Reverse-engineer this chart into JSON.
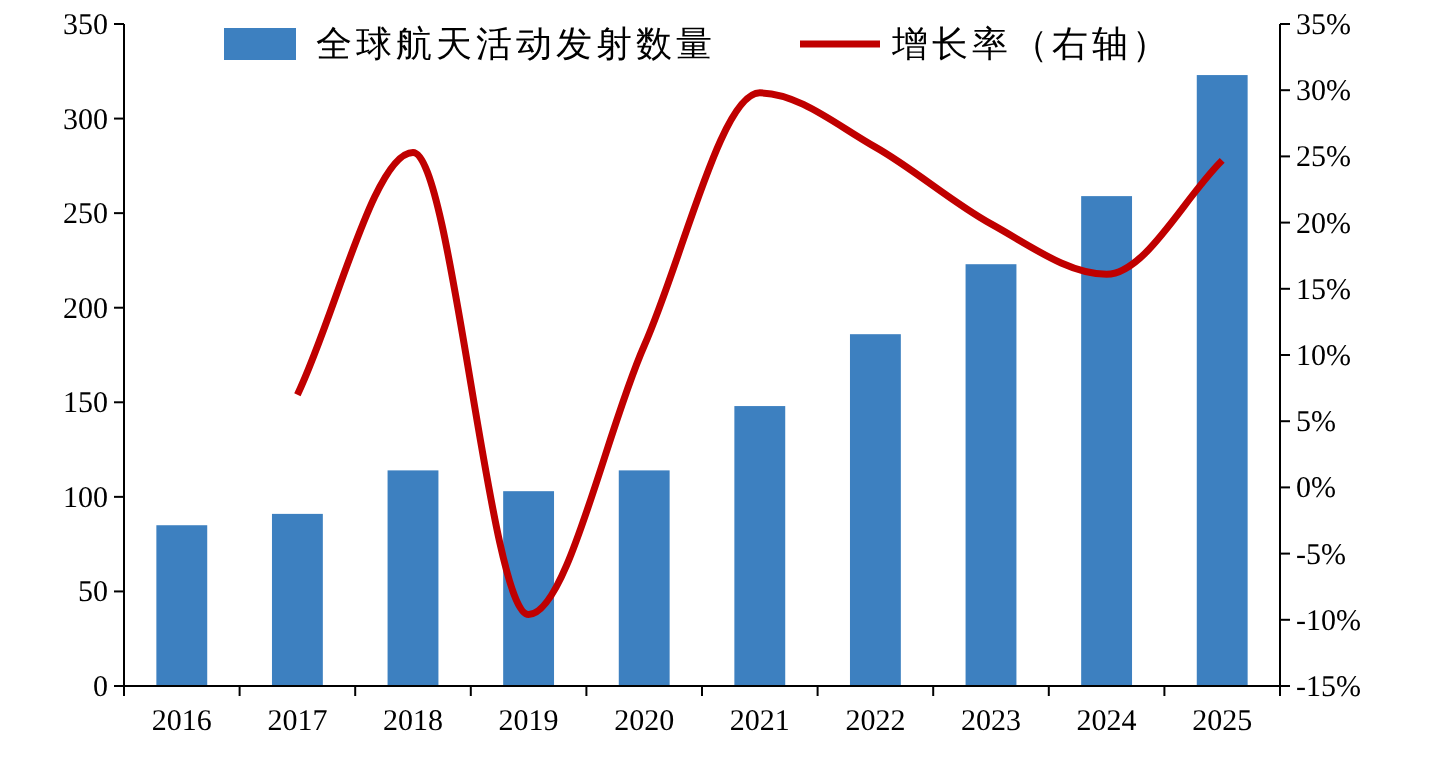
{
  "chart_data": {
    "type": "bar",
    "categories": [
      "2016",
      "2017",
      "2018",
      "2019",
      "2020",
      "2021",
      "2022",
      "2023",
      "2024",
      "2025"
    ],
    "series": [
      {
        "name": "全球航天活动发射数量",
        "color": "#3d80c0",
        "values": [
          85,
          91,
          114,
          103,
          114,
          148,
          186,
          223,
          259,
          323
        ]
      },
      {
        "name": "增长率（右轴）",
        "type": "line",
        "axis": "y2",
        "color": "#c00000",
        "values": [
          null,
          7.0,
          25.3,
          -9.6,
          10.7,
          29.8,
          25.7,
          19.9,
          16.1,
          24.7
        ]
      }
    ],
    "ylim": [
      0,
      350
    ],
    "yticks": [
      0,
      50,
      100,
      150,
      200,
      250,
      300,
      350
    ],
    "y2lim": [
      -15,
      35
    ],
    "y2ticks": [
      {
        "value": -15,
        "label": "-15%"
      },
      {
        "value": -10,
        "label": "-10%"
      },
      {
        "value": -5,
        "label": "-5%"
      },
      {
        "value": 0,
        "label": "0%"
      },
      {
        "value": 5,
        "label": "5%"
      },
      {
        "value": 10,
        "label": "10%"
      },
      {
        "value": 15,
        "label": "15%"
      },
      {
        "value": 20,
        "label": "20%"
      },
      {
        "value": 25,
        "label": "25%"
      },
      {
        "value": 30,
        "label": "30%"
      },
      {
        "value": 35,
        "label": "35%"
      }
    ],
    "grid": false,
    "legend": "top",
    "marker": "none",
    "line_style": "solid"
  }
}
